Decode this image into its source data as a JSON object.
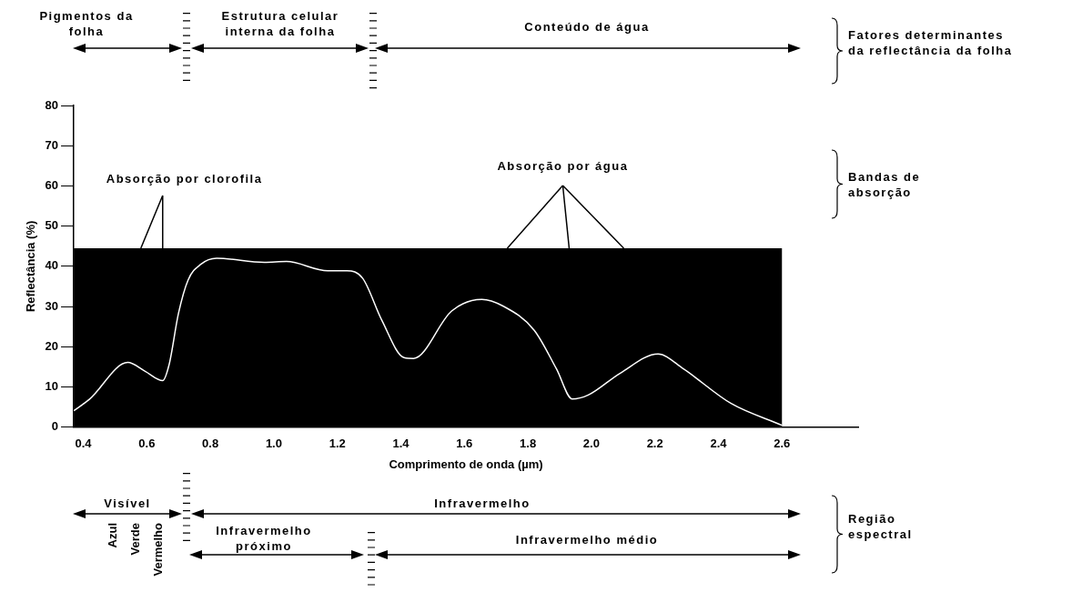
{
  "chart_data": {
    "type": "line",
    "xlabel": "Comprimento de onda (µm)",
    "ylabel": "Reflectância (%)",
    "xlim": [
      0.37,
      2.84
    ],
    "xticks": [
      {
        "value": 0.4,
        "label": "0.4"
      },
      {
        "value": 0.6,
        "label": "0.6"
      },
      {
        "value": 0.8,
        "label": "0.8"
      },
      {
        "value": 1.0,
        "label": "1.0"
      },
      {
        "value": 1.2,
        "label": "1.2"
      },
      {
        "value": 1.4,
        "label": "1.4"
      },
      {
        "value": 1.6,
        "label": "1.6"
      },
      {
        "value": 1.8,
        "label": "1.8"
      },
      {
        "value": 2.0,
        "label": "2.0"
      },
      {
        "value": 2.2,
        "label": "2.2"
      },
      {
        "value": 2.4,
        "label": "2.4"
      },
      {
        "value": 2.6,
        "label": "2.6"
      }
    ],
    "ylim": [
      0,
      80
    ],
    "yticks": [
      0,
      10,
      20,
      30,
      40,
      50,
      60,
      70,
      80
    ],
    "grid": false,
    "legend": false,
    "marker": "none",
    "line_style": "solid",
    "series": [
      {
        "color": "#ffffff",
        "x": [
          0.37,
          0.42,
          0.54,
          0.595,
          0.65,
          0.67,
          0.7,
          0.73,
          0.77,
          0.82,
          0.97,
          1.04,
          1.17,
          1.23,
          1.28,
          1.34,
          1.41,
          1.44,
          1.56,
          1.655,
          1.72,
          1.82,
          1.89,
          1.94,
          1.99,
          2.09,
          2.21,
          2.29,
          2.44,
          2.6
        ],
        "values": [
          4.1,
          7,
          16.1,
          13.9,
          11.6,
          15.5,
          28.4,
          36.6,
          40.5,
          42,
          41,
          41.2,
          38.9,
          38.9,
          37,
          26.6,
          17.3,
          17.1,
          28.9,
          31.8,
          30.2,
          24.1,
          14.5,
          7,
          8,
          13.4,
          18.2,
          14.5,
          5.9,
          0.5
        ]
      }
    ],
    "bands": [
      {
        "axis": "y",
        "from": 0,
        "to": 44.5,
        "color": "#000000"
      }
    ],
    "annotations": [
      "Pigmentos da folha",
      "Estrutura celular interna da folha",
      "Conteúdo de água",
      "Fatores determinantes da reflectância da folha",
      {
        "text": "Absorção por clorofila",
        "x": 0.65,
        "y": 44.5
      },
      {
        "text": "Absorção por água",
        "x": 1.93,
        "y": 44.5
      },
      "Bandas de absorção",
      "Visível",
      "Azul",
      "Verde",
      "Vermelho",
      "Infravermelho",
      "Infravermelho próximo",
      "Infravermelho médio",
      "Região espectral"
    ]
  }
}
